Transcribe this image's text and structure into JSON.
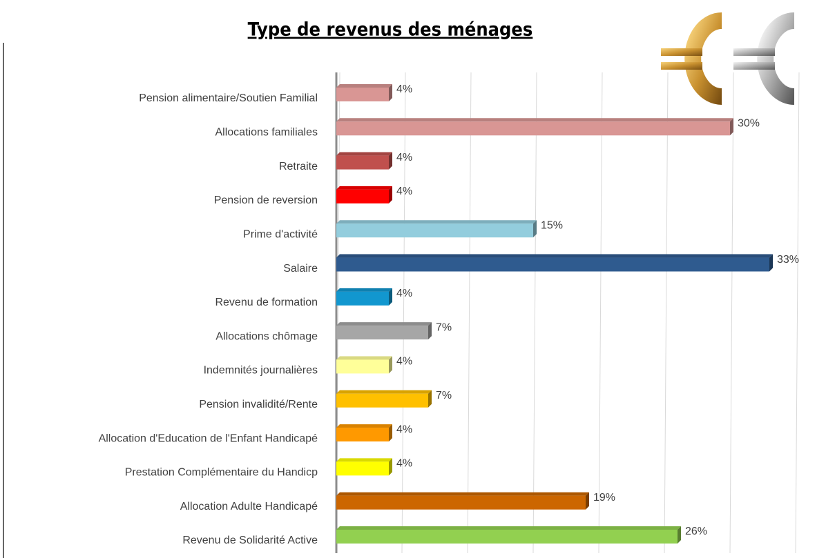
{
  "chart_data": {
    "type": "barh",
    "title": "Type de revenus des ménages",
    "categories": [
      "Pension alimentaire/Soutien Familial",
      "Allocations familiales",
      "Retraite",
      "Pension de reversion",
      "Prime d'activité",
      "Salaire",
      "Revenu de formation",
      "Allocations chômage",
      "Indemnités journalières",
      "Pension invalidité/Rente",
      "Allocation d'Education de l'Enfant Handicapé",
      "Prestation Complémentaire du Handicp",
      "Allocation Adulte Handicapé",
      "Revenu de Solidarité Active"
    ],
    "values": [
      4,
      30,
      4,
      4,
      15,
      33,
      4,
      7,
      4,
      7,
      4,
      4,
      19,
      26
    ],
    "value_labels": [
      "4%",
      "30%",
      "4%",
      "4%",
      "15%",
      "33%",
      "4%",
      "7%",
      "4%",
      "7%",
      "4%",
      "4%",
      "19%",
      "26%"
    ],
    "colors": [
      "#d99694",
      "#d99694",
      "#c0504d",
      "#ff0000",
      "#93cddd",
      "#2f5b8f",
      "#1297cf",
      "#a6a6a6",
      "#ffff99",
      "#ffc000",
      "#ff9900",
      "#ffff00",
      "#cc6600",
      "#92d050"
    ],
    "xlim": [
      0,
      35
    ],
    "xticks": [
      0,
      5,
      10,
      15,
      20,
      25,
      30,
      35
    ],
    "grid": true
  }
}
